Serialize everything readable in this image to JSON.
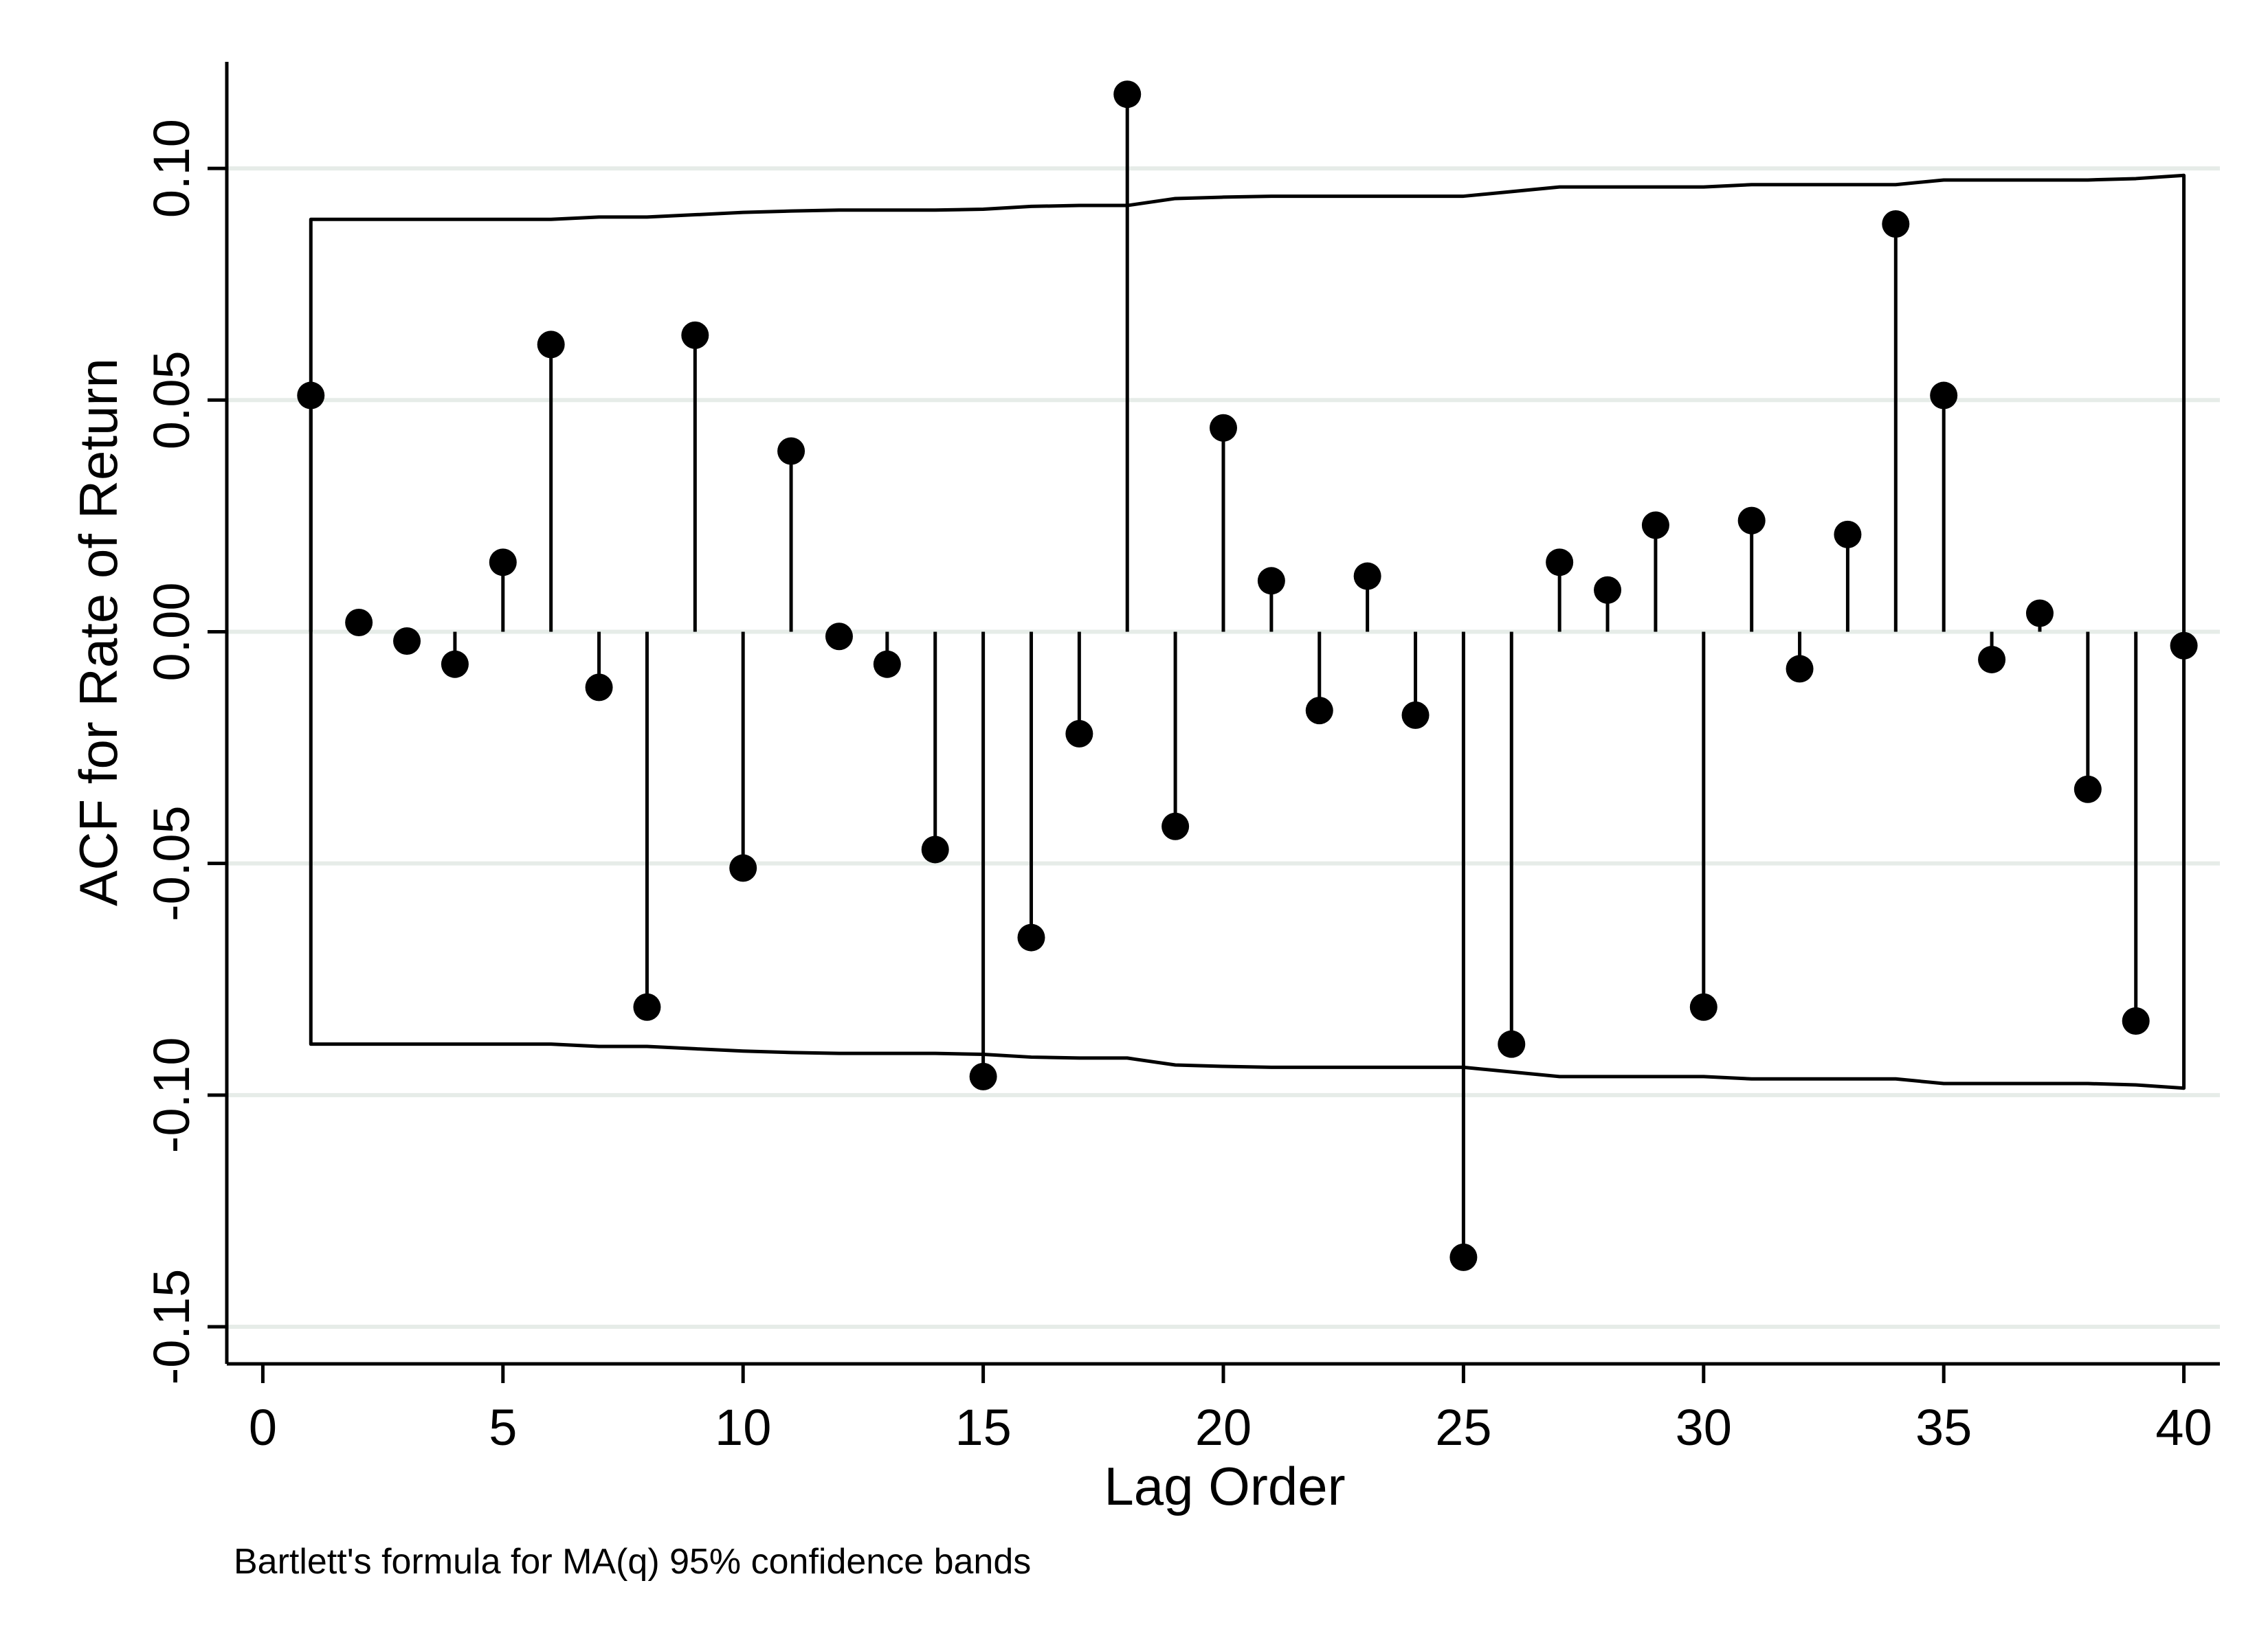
{
  "chart_data": {
    "type": "scatter",
    "ylabel": "ACF for Rate of Return",
    "xlabel": "Lag Order",
    "note": "Bartlett's formula for MA(q) 95% confidence bands",
    "xlim": [
      -0.75,
      40.75
    ],
    "ylim": [
      -0.158,
      0.123
    ],
    "x_ticks": [
      0,
      5,
      10,
      15,
      20,
      25,
      30,
      35,
      40
    ],
    "x_tick_labels": [
      "0",
      "5",
      "10",
      "15",
      "20",
      "25",
      "30",
      "35",
      "40"
    ],
    "y_ticks": [
      -0.15,
      -0.1,
      -0.05,
      0.0,
      0.05,
      0.1
    ],
    "y_tick_labels": [
      "-0.15",
      "-0.10",
      "-0.05",
      "0.00",
      "0.05",
      "0.10"
    ],
    "grid": true,
    "colors": {
      "grid": "#e6ece8",
      "marker": "#000000",
      "line": "#000000"
    },
    "series": [
      {
        "lags": [
          1,
          2,
          3,
          4,
          5,
          6,
          7,
          8,
          9,
          10,
          11,
          12,
          13,
          14,
          15,
          16,
          17,
          18,
          19,
          20,
          21,
          22,
          23,
          24,
          25,
          26,
          27,
          28,
          29,
          30,
          31,
          32,
          33,
          34,
          35,
          36,
          37,
          38,
          39,
          40
        ],
        "acf": [
          0.051,
          0.002,
          -0.002,
          -0.007,
          0.015,
          0.062,
          -0.012,
          -0.081,
          0.064,
          -0.051,
          0.039,
          -0.001,
          -0.007,
          -0.047,
          -0.096,
          -0.066,
          -0.022,
          0.116,
          -0.042,
          0.044,
          0.011,
          -0.017,
          0.012,
          -0.018,
          -0.135,
          -0.089,
          0.015,
          0.009,
          0.023,
          -0.081,
          0.024,
          -0.008,
          0.021,
          0.088,
          0.051,
          -0.006,
          0.004,
          -0.034,
          -0.084,
          -0.003
        ]
      },
      {
        "lags": [
          1,
          2,
          3,
          4,
          5,
          6,
          7,
          8,
          9,
          10,
          11,
          12,
          13,
          14,
          15,
          16,
          17,
          18,
          19,
          20,
          21,
          22,
          23,
          24,
          25,
          26,
          27,
          28,
          29,
          30,
          31,
          32,
          33,
          34,
          35,
          36,
          37,
          38,
          39,
          40
        ],
        "band": [
          0.089,
          0.089,
          0.089,
          0.089,
          0.089,
          0.089,
          0.0895,
          0.0895,
          0.09,
          0.0905,
          0.0908,
          0.091,
          0.091,
          0.091,
          0.0912,
          0.0918,
          0.092,
          0.092,
          0.0935,
          0.0938,
          0.094,
          0.094,
          0.094,
          0.094,
          0.094,
          0.095,
          0.096,
          0.096,
          0.096,
          0.096,
          0.0965,
          0.0965,
          0.0965,
          0.0965,
          0.0975,
          0.0975,
          0.0975,
          0.0975,
          0.0978,
          0.0985
        ]
      }
    ]
  }
}
